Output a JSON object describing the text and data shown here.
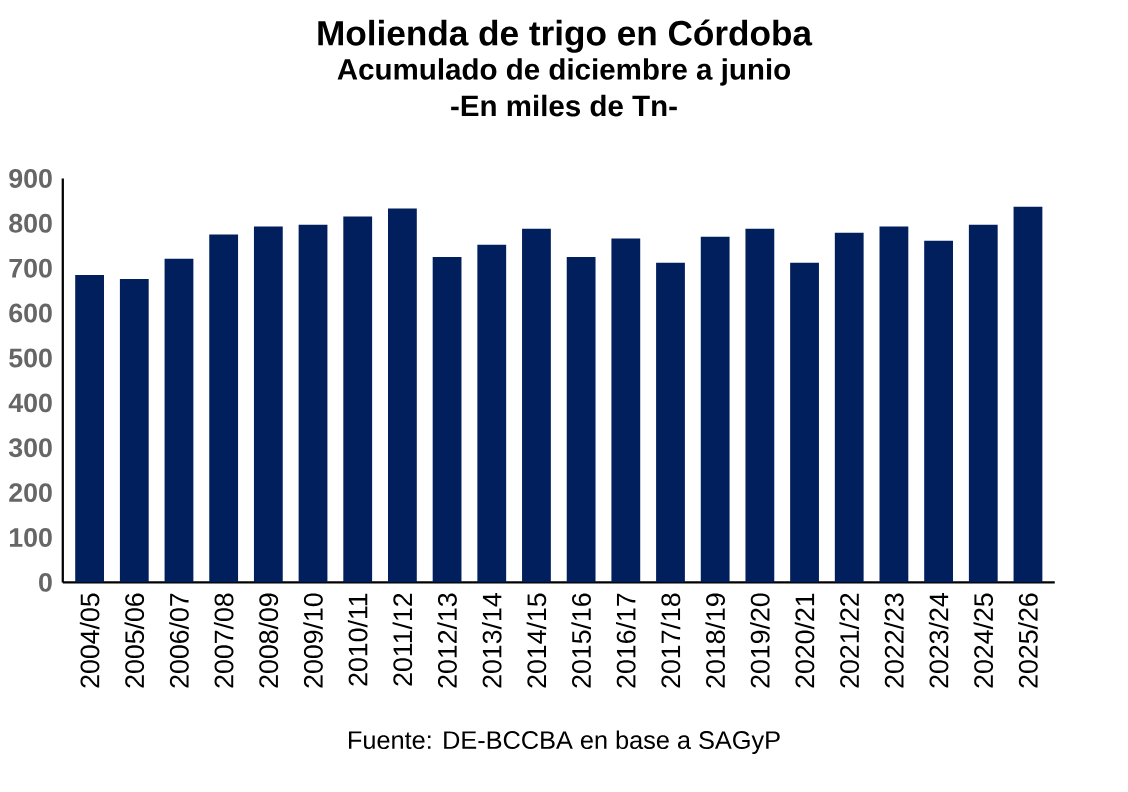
{
  "chart_data": {
    "type": "bar",
    "title": "Molienda de trigo en Córdoba",
    "subtitle": "Acumulado de diciembre a junio\n-En miles de Tn-",
    "categories": [
      "2004/05",
      "2005/06",
      "2006/07",
      "2007/08",
      "2008/09",
      "2009/10",
      "2010/11",
      "2011/12",
      "2012/13",
      "2013/14",
      "2014/15",
      "2015/16",
      "2016/17",
      "2017/18",
      "2018/19",
      "2019/20",
      "2020/21",
      "2021/22",
      "2022/23",
      "2023/24",
      "2024/25",
      "2025/26"
    ],
    "values": [
      685,
      676,
      721,
      775,
      793,
      797,
      815,
      833,
      725,
      752,
      788,
      725,
      766,
      712,
      770,
      788,
      712,
      779,
      793,
      761,
      797,
      837
    ],
    "color": "#001f5c",
    "ylim": [
      0,
      900
    ],
    "yticks": [
      0,
      100,
      200,
      300,
      400,
      500,
      600,
      700,
      800,
      900
    ],
    "grid": false,
    "annotations": [
      "Fuente: DE-BCCBA en base a SAGyP"
    ]
  }
}
